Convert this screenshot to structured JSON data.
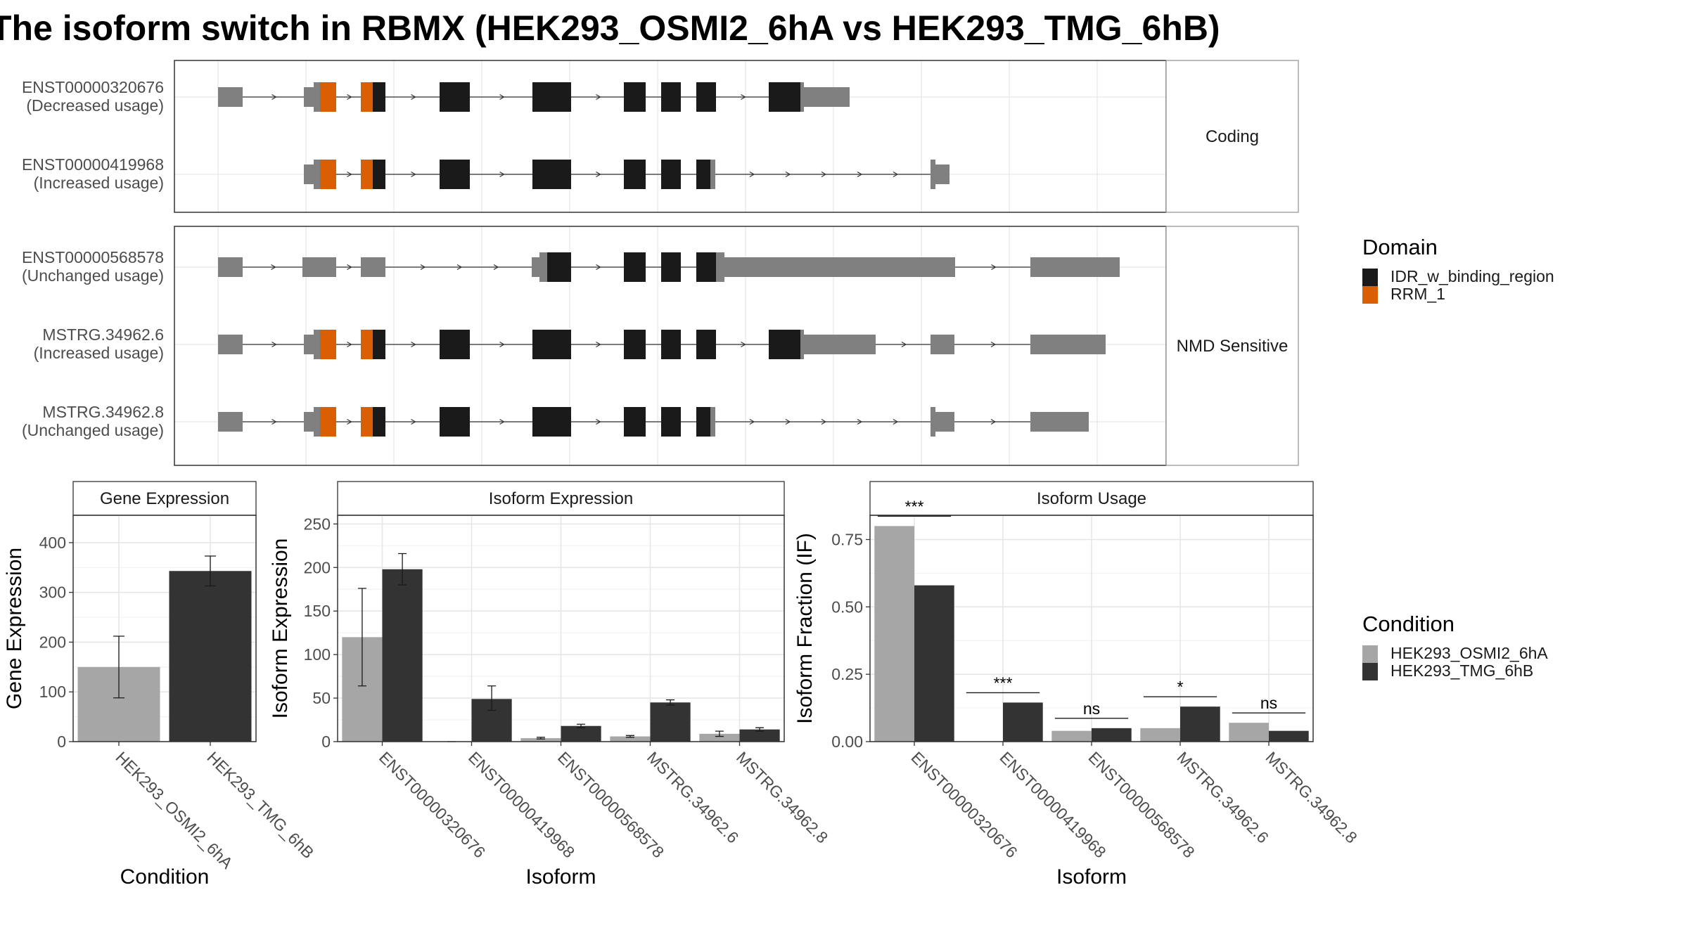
{
  "title": "The isoform switch in RBMX (HEK293_OSMI2_6hA vs HEK293_TMG_6hB)",
  "colors": {
    "idr": "#1a1a1a",
    "rrm": "#d95f02",
    "utr": "#808080",
    "cond_a": "#a6a6a6",
    "cond_b": "#333333"
  },
  "structure": {
    "panels": [
      {
        "label": "Coding",
        "transcripts": [
          {
            "id": "ENST00000320676",
            "usage": "(Decreased usage)",
            "type": "A"
          },
          {
            "id": "ENST00000419968",
            "usage": "(Increased usage)",
            "type": "B"
          }
        ]
      },
      {
        "label": "NMD Sensitive",
        "transcripts": [
          {
            "id": "ENST00000568578",
            "usage": "(Unchanged usage)",
            "type": "C"
          },
          {
            "id": "MSTRG.34962.6",
            "usage": "(Increased usage)",
            "type": "D"
          },
          {
            "id": "MSTRG.34962.8",
            "usage": "(Unchanged usage)",
            "type": "E"
          }
        ]
      }
    ]
  },
  "legend_domain": {
    "title": "Domain",
    "items": [
      {
        "label": "IDR_w_binding_region",
        "color": "#1a1a1a"
      },
      {
        "label": "RRM_1",
        "color": "#d95f02"
      }
    ]
  },
  "legend_condition": {
    "title": "Condition",
    "items": [
      {
        "label": "HEK293_OSMI2_6hA",
        "color": "#a6a6a6"
      },
      {
        "label": "HEK293_TMG_6hB",
        "color": "#333333"
      }
    ]
  },
  "chart_data": [
    {
      "type": "bar",
      "title": "Gene Expression",
      "xlabel": "Condition",
      "ylabel": "Gene Expression",
      "ylim": [
        0,
        455
      ],
      "yticks": [
        0,
        100,
        200,
        300,
        400
      ],
      "categories": [
        "HEK293_OSMI2_6hA",
        "HEK293_TMG_6hB"
      ],
      "values": [
        150,
        343
      ],
      "errors": [
        [
          88,
          212
        ],
        [
          313,
          373
        ]
      ]
    },
    {
      "type": "bar",
      "title": "Isoform Expression",
      "xlabel": "Isoform",
      "ylabel": "Isoform Expression",
      "ylim": [
        0,
        260
      ],
      "yticks": [
        0,
        50,
        100,
        150,
        200,
        250
      ],
      "categories": [
        "ENST00000320676",
        "ENST00000419968",
        "ENST00000568578",
        "MSTRG.34962.6",
        "MSTRG.34962.8"
      ],
      "series": [
        {
          "name": "HEK293_OSMI2_6hA",
          "values": [
            120,
            0,
            4,
            6,
            9
          ],
          "errors": [
            [
              64,
              176
            ],
            [
              0,
              0
            ],
            [
              3,
              5
            ],
            [
              5,
              7
            ],
            [
              6,
              12
            ]
          ]
        },
        {
          "name": "HEK293_TMG_6hB",
          "values": [
            198,
            49,
            18,
            45,
            14
          ],
          "errors": [
            [
              180,
              216
            ],
            [
              36,
              64
            ],
            [
              16,
              20
            ],
            [
              42,
              48
            ],
            [
              12,
              16
            ]
          ]
        }
      ]
    },
    {
      "type": "bar",
      "title": "Isoform Usage",
      "xlabel": "Isoform",
      "ylabel": "Isoform Fraction (IF)",
      "ylim": [
        0,
        0.84
      ],
      "yticks": [
        0.0,
        0.25,
        0.5,
        0.75
      ],
      "ytick_labels": [
        "0.00",
        "0.25",
        "0.50",
        "0.75"
      ],
      "categories": [
        "ENST00000320676",
        "ENST00000419968",
        "ENST00000568578",
        "MSTRG.34962.6",
        "MSTRG.34962.8"
      ],
      "series": [
        {
          "name": "HEK293_OSMI2_6hA",
          "values": [
            0.8,
            0.0,
            0.04,
            0.05,
            0.07
          ]
        },
        {
          "name": "HEK293_TMG_6hB",
          "values": [
            0.58,
            0.145,
            0.05,
            0.13,
            0.04
          ]
        }
      ],
      "significance": [
        "***",
        "***",
        "ns",
        "*",
        "ns"
      ]
    }
  ]
}
